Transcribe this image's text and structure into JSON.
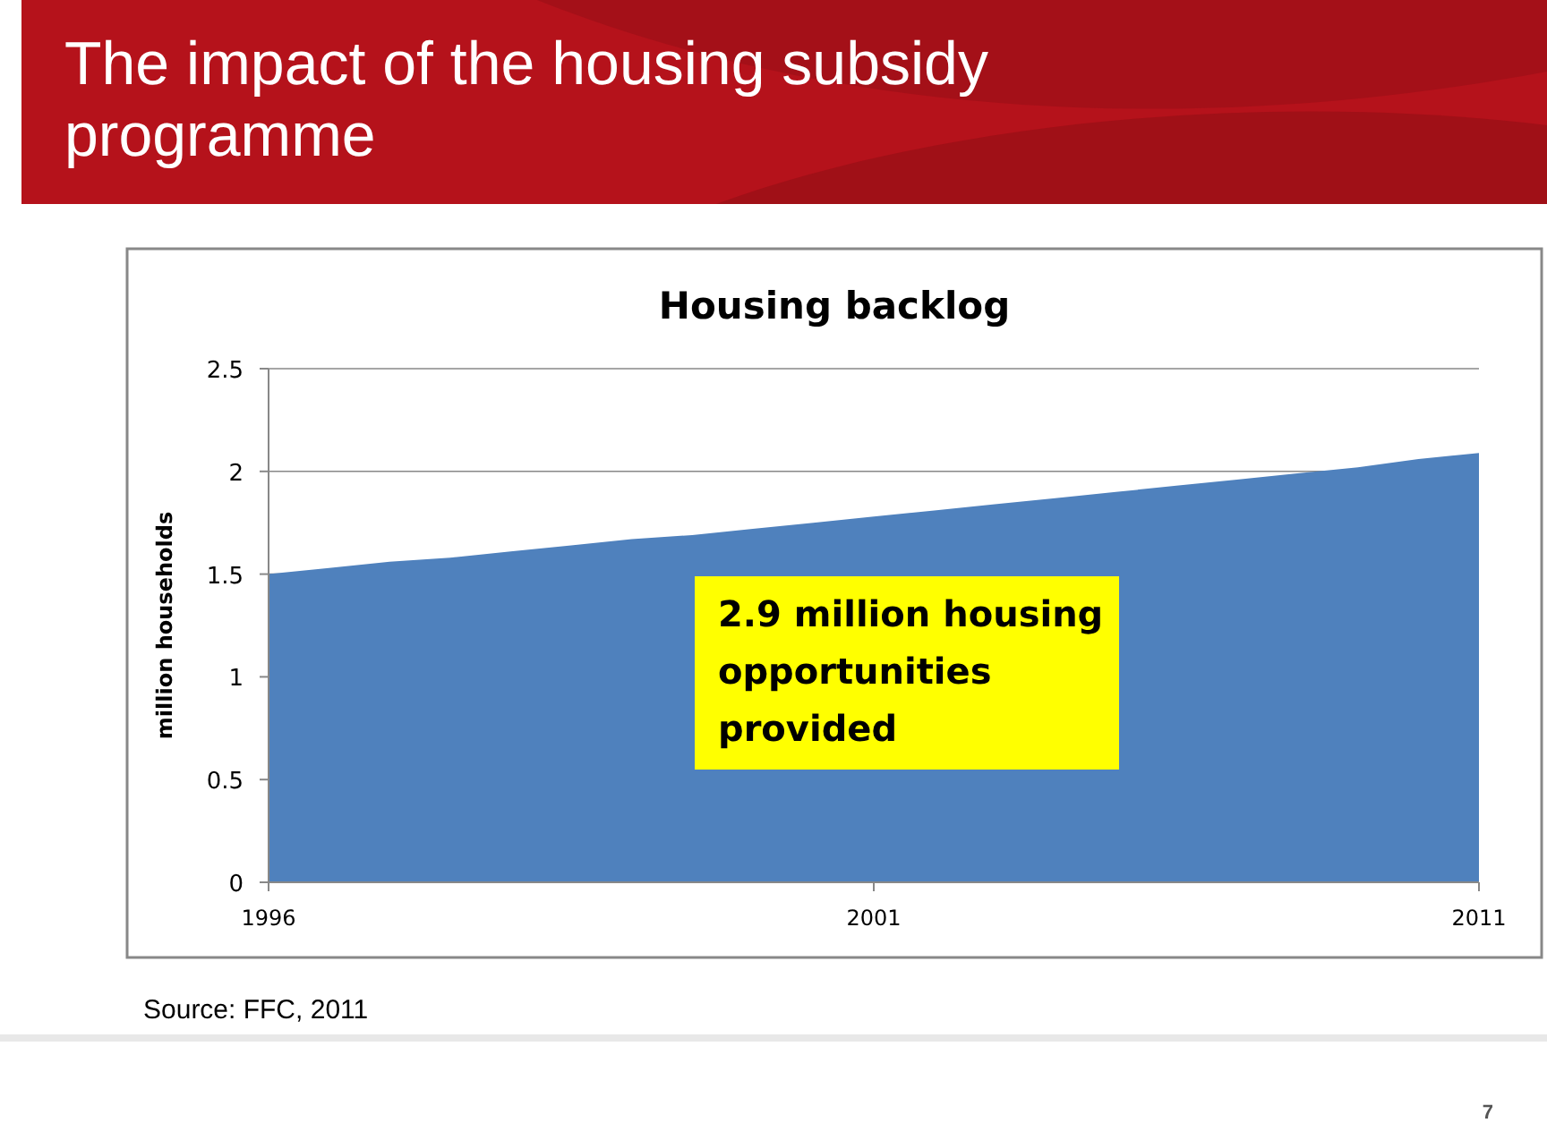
{
  "chart_data": {
    "type": "area",
    "title": "The impact of the housing subsidy programme",
    "subtitle": "Housing backlog",
    "ylabel": "million households",
    "categories": [
      "1996",
      null,
      null,
      null,
      null,
      null,
      null,
      null,
      null,
      null,
      "2001",
      null,
      null,
      null,
      null,
      null,
      null,
      null,
      null,
      null,
      "2011"
    ],
    "values": [
      1.5,
      1.53,
      1.56,
      1.58,
      1.61,
      1.64,
      1.67,
      1.69,
      1.72,
      1.75,
      1.78,
      1.81,
      1.84,
      1.87,
      1.9,
      1.93,
      1.96,
      1.99,
      2.02,
      2.06,
      2.09
    ],
    "color": "#4f81bd",
    "ylim": [
      0,
      2.5
    ],
    "yticks": [
      0,
      0.5,
      1,
      1.5,
      2,
      2.5
    ],
    "grid": "y",
    "annotations": [
      "2.9 million housing opportunities provided",
      "Source: FFC, 2011",
      "7"
    ]
  }
}
